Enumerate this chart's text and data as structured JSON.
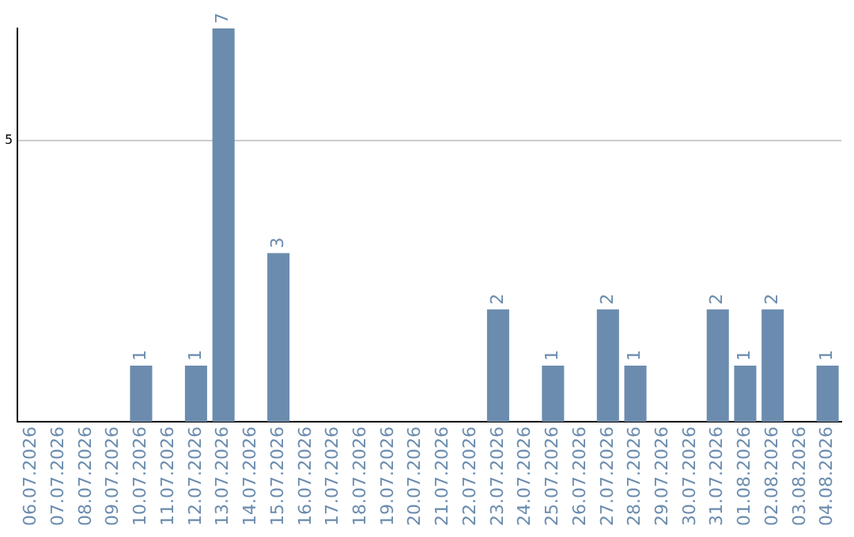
{
  "chart_data": {
    "type": "bar",
    "categories": [
      "06.07.2026",
      "07.07.2026",
      "08.07.2026",
      "09.07.2026",
      "10.07.2026",
      "11.07.2026",
      "12.07.2026",
      "13.07.2026",
      "14.07.2026",
      "15.07.2026",
      "16.07.2026",
      "17.07.2026",
      "18.07.2026",
      "19.07.2026",
      "20.07.2026",
      "21.07.2026",
      "22.07.2026",
      "23.07.2026",
      "24.07.2026",
      "25.07.2026",
      "26.07.2026",
      "27.07.2026",
      "28.07.2026",
      "29.07.2026",
      "30.07.2026",
      "31.07.2026",
      "01.08.2026",
      "02.08.2026",
      "03.08.2026",
      "04.08.2026"
    ],
    "values": [
      null,
      null,
      null,
      null,
      1,
      null,
      1,
      7,
      null,
      3,
      null,
      null,
      null,
      null,
      null,
      null,
      null,
      2,
      null,
      1,
      null,
      2,
      1,
      null,
      null,
      2,
      1,
      2,
      null,
      1
    ],
    "color": "#6b8cae",
    "ylim": [
      0,
      7
    ],
    "yticks": [
      5
    ],
    "grid": "y",
    "data_labels": true
  }
}
